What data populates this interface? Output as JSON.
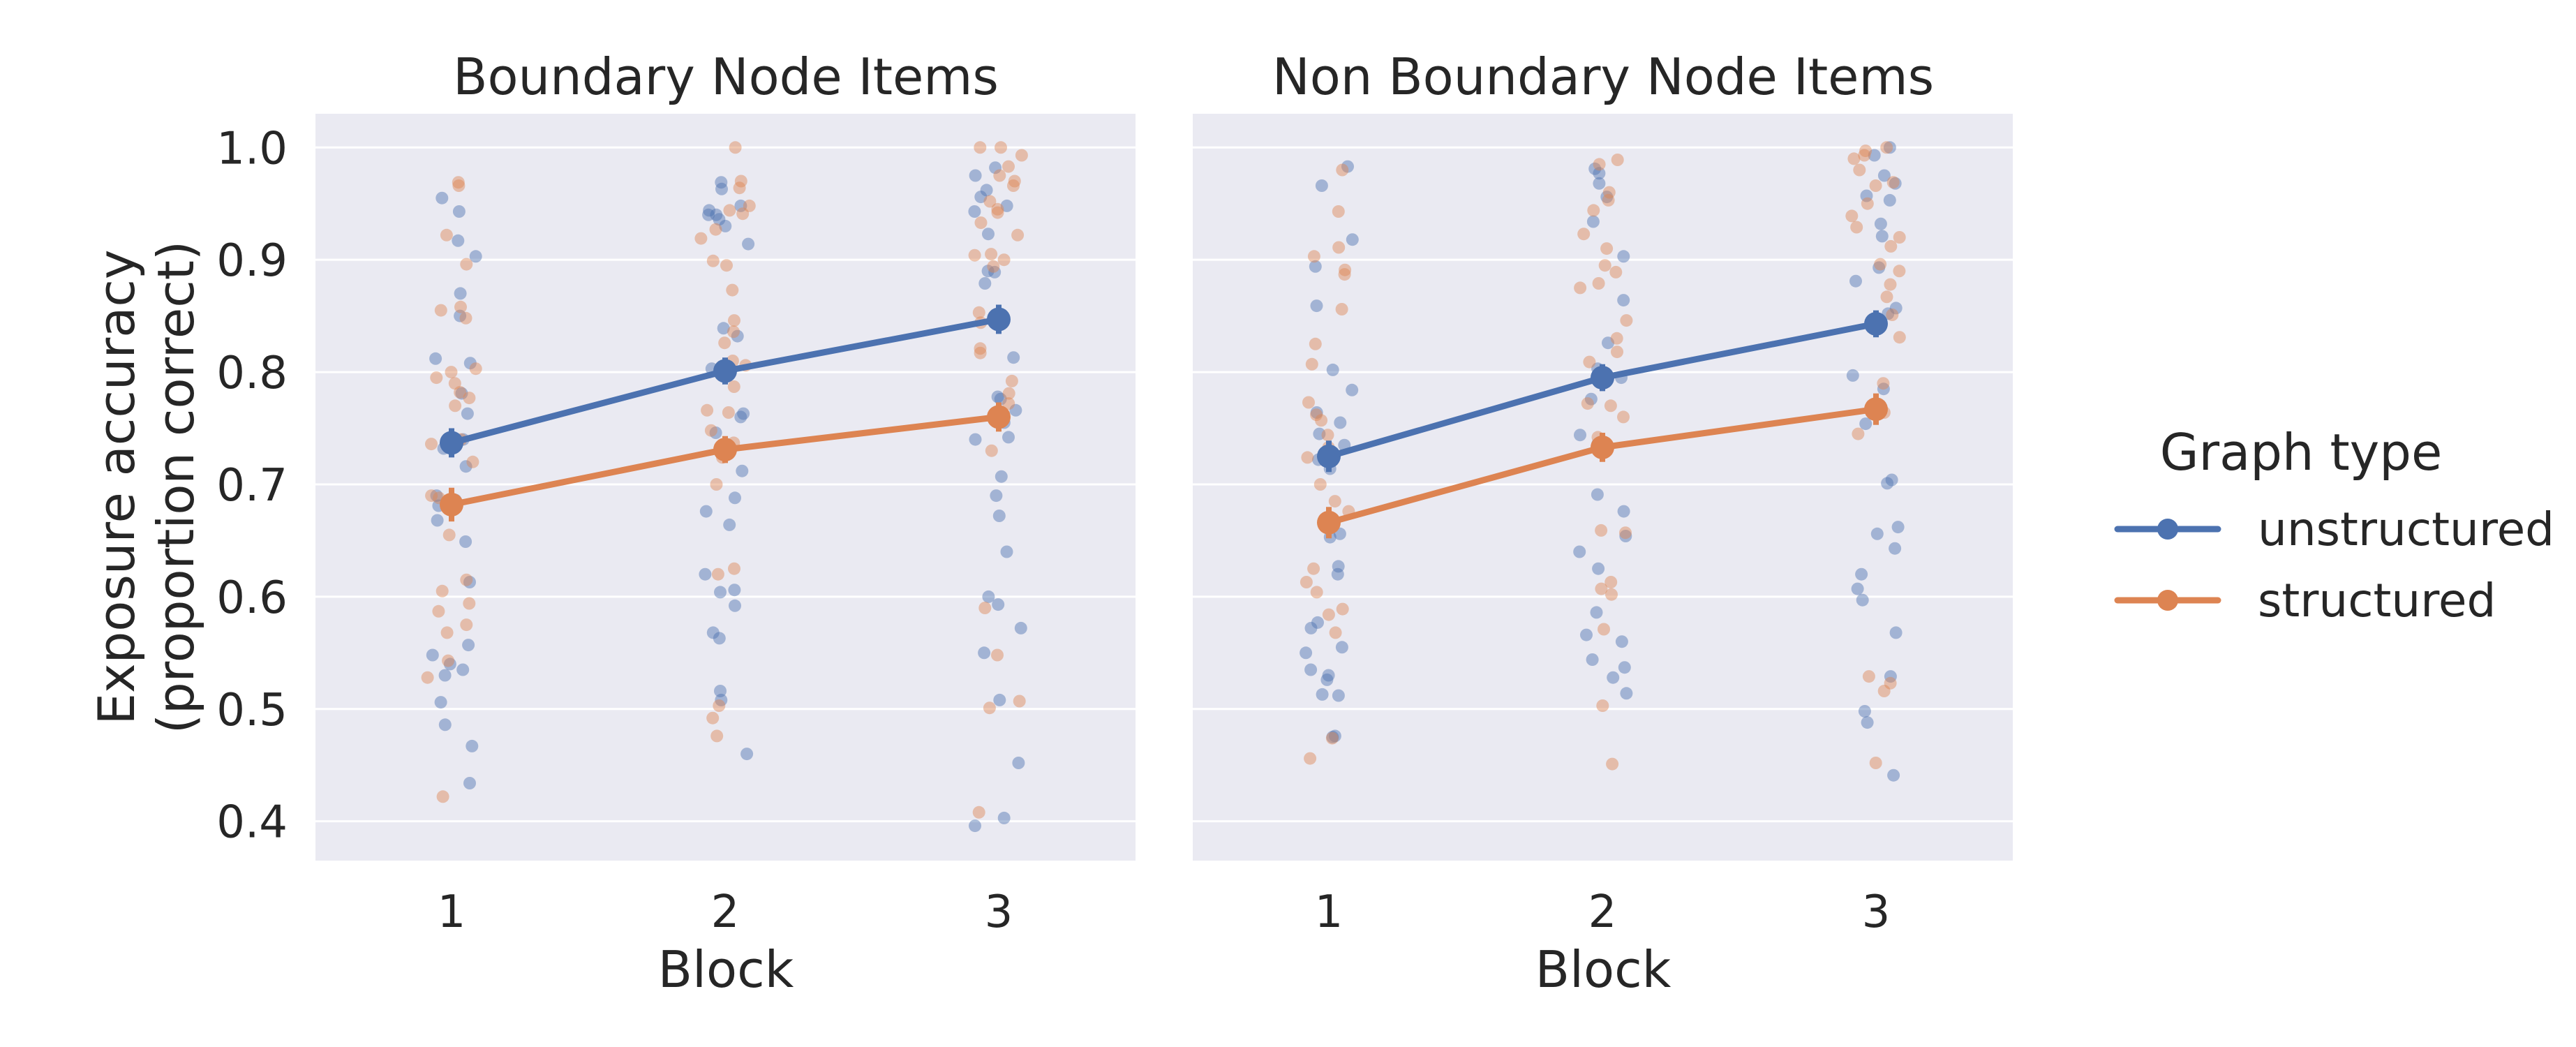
{
  "chart_data": {
    "type": "line",
    "ylabel_lines": [
      "Exposure accuracy",
      "(proportion correct)"
    ],
    "xlabel": "Block",
    "ylim": [
      0.365,
      1.03
    ],
    "yticks": [
      "0.4",
      "0.5",
      "0.6",
      "0.7",
      "0.8",
      "0.9",
      "1.0"
    ],
    "ytick_values": [
      0.4,
      0.5,
      0.6,
      0.7,
      0.8,
      0.9,
      1.0
    ],
    "categories": [
      "1",
      "2",
      "3"
    ],
    "grid": true,
    "legend": {
      "title": "Graph type",
      "placement": "right",
      "entries": [
        "unstructured",
        "structured"
      ]
    },
    "colors": {
      "unstructured": "#4c72b0",
      "structured": "#dd8452",
      "panel_bg": "#eaeaf2",
      "grid": "#ffffff"
    },
    "panels": [
      {
        "title": "Boundary Node Items",
        "series": [
          {
            "name": "unstructured",
            "means": [
              0.737,
              0.801,
              0.847
            ],
            "ci_low": [
              0.724,
              0.789,
              0.834
            ],
            "ci_high": [
              0.75,
              0.813,
              0.86
            ],
            "points": [
              [
                0.943,
                0.955,
                0.917,
                0.903,
                0.87,
                0.85,
                0.812,
                0.808,
                0.781,
                0.763,
                0.74,
                0.732,
                0.716,
                0.69,
                0.686,
                0.681,
                0.668,
                0.649,
                0.613,
                0.557,
                0.548,
                0.54,
                0.535,
                0.53,
                0.506,
                0.486,
                0.467,
                0.434
              ],
              [
                0.969,
                0.963,
                0.948,
                0.944,
                0.94,
                0.94,
                0.936,
                0.93,
                0.914,
                0.839,
                0.832,
                0.803,
                0.797,
                0.763,
                0.76,
                0.746,
                0.728,
                0.712,
                0.688,
                0.676,
                0.664,
                0.62,
                0.606,
                0.604,
                0.592,
                0.568,
                0.563,
                0.516,
                0.508,
                0.46
              ],
              [
                0.982,
                0.975,
                0.962,
                0.956,
                0.948,
                0.943,
                0.923,
                0.89,
                0.889,
                0.879,
                0.813,
                0.778,
                0.776,
                0.766,
                0.755,
                0.742,
                0.74,
                0.707,
                0.69,
                0.672,
                0.64,
                0.6,
                0.593,
                0.572,
                0.55,
                0.508,
                0.452,
                0.403,
                0.396
              ]
            ]
          },
          {
            "name": "structured",
            "means": [
              0.682,
              0.731,
              0.76
            ],
            "ci_low": [
              0.667,
              0.719,
              0.747
            ],
            "ci_high": [
              0.697,
              0.743,
              0.773
            ],
            "points": [
              [
                0.969,
                0.966,
                0.922,
                0.896,
                0.858,
                0.855,
                0.848,
                0.803,
                0.8,
                0.795,
                0.79,
                0.782,
                0.777,
                0.77,
                0.74,
                0.736,
                0.72,
                0.69,
                0.688,
                0.655,
                0.615,
                0.605,
                0.594,
                0.587,
                0.575,
                0.568,
                0.543,
                0.528,
                0.422
              ],
              [
                1.0,
                0.97,
                0.964,
                0.948,
                0.944,
                0.941,
                0.927,
                0.919,
                0.899,
                0.895,
                0.873,
                0.846,
                0.836,
                0.826,
                0.81,
                0.806,
                0.787,
                0.766,
                0.764,
                0.748,
                0.737,
                0.724,
                0.7,
                0.625,
                0.62,
                0.503,
                0.492,
                0.476
              ],
              [
                1.0,
                1.0,
                0.993,
                0.983,
                0.975,
                0.97,
                0.966,
                0.952,
                0.945,
                0.942,
                0.933,
                0.922,
                0.905,
                0.904,
                0.9,
                0.894,
                0.853,
                0.844,
                0.821,
                0.817,
                0.792,
                0.781,
                0.772,
                0.73,
                0.59,
                0.548,
                0.507,
                0.501,
                0.408
              ]
            ]
          }
        ]
      },
      {
        "title": "Non Boundary Node Items",
        "series": [
          {
            "name": "unstructured",
            "means": [
              0.725,
              0.795,
              0.843
            ],
            "ci_low": [
              0.711,
              0.783,
              0.831
            ],
            "ci_high": [
              0.739,
              0.807,
              0.855
            ],
            "points": [
              [
                0.983,
                0.966,
                0.918,
                0.894,
                0.859,
                0.802,
                0.784,
                0.764,
                0.755,
                0.745,
                0.735,
                0.722,
                0.714,
                0.656,
                0.653,
                0.627,
                0.62,
                0.577,
                0.572,
                0.555,
                0.55,
                0.535,
                0.53,
                0.526,
                0.513,
                0.512,
                0.476,
                0.475
              ],
              [
                0.981,
                0.977,
                0.968,
                0.956,
                0.934,
                0.903,
                0.864,
                0.826,
                0.803,
                0.795,
                0.776,
                0.744,
                0.736,
                0.691,
                0.676,
                0.654,
                0.64,
                0.625,
                0.586,
                0.566,
                0.56,
                0.544,
                0.537,
                0.528,
                0.514
              ],
              [
                1.0,
                0.993,
                0.975,
                0.968,
                0.957,
                0.953,
                0.932,
                0.921,
                0.893,
                0.881,
                0.857,
                0.852,
                0.797,
                0.785,
                0.754,
                0.704,
                0.701,
                0.662,
                0.656,
                0.643,
                0.62,
                0.607,
                0.597,
                0.568,
                0.529,
                0.498,
                0.488,
                0.441
              ]
            ]
          },
          {
            "name": "structured",
            "means": [
              0.666,
              0.733,
              0.767
            ],
            "ci_low": [
              0.652,
              0.72,
              0.753
            ],
            "ci_high": [
              0.68,
              0.746,
              0.781
            ],
            "points": [
              [
                0.98,
                0.943,
                0.911,
                0.903,
                0.891,
                0.887,
                0.856,
                0.825,
                0.807,
                0.773,
                0.762,
                0.757,
                0.744,
                0.733,
                0.724,
                0.7,
                0.685,
                0.676,
                0.625,
                0.613,
                0.604,
                0.589,
                0.584,
                0.568,
                0.474,
                0.456
              ],
              [
                0.989,
                0.985,
                0.96,
                0.953,
                0.944,
                0.923,
                0.91,
                0.895,
                0.889,
                0.879,
                0.875,
                0.846,
                0.83,
                0.818,
                0.809,
                0.772,
                0.77,
                0.76,
                0.742,
                0.659,
                0.657,
                0.613,
                0.607,
                0.602,
                0.571,
                0.503,
                0.451
              ],
              [
                1.0,
                0.997,
                0.993,
                0.99,
                0.98,
                0.969,
                0.966,
                0.95,
                0.939,
                0.929,
                0.92,
                0.912,
                0.896,
                0.89,
                0.878,
                0.867,
                0.851,
                0.831,
                0.79,
                0.764,
                0.745,
                0.523,
                0.529,
                0.516,
                0.452
              ]
            ]
          }
        ]
      }
    ]
  }
}
